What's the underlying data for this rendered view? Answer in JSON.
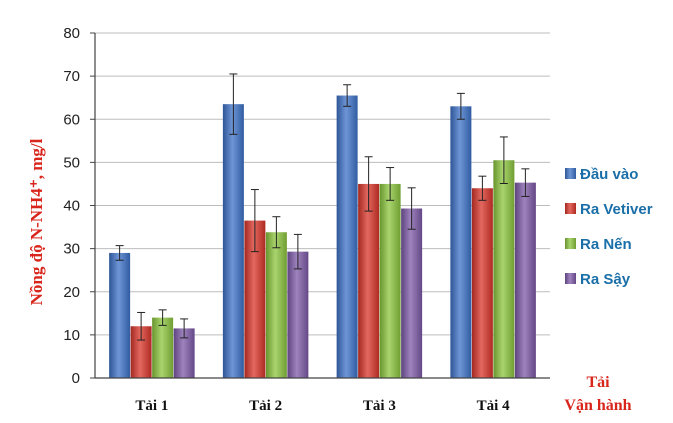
{
  "chart_data": {
    "type": "bar",
    "categories": [
      "Tải 1",
      "Tải 2",
      "Tải 3",
      "Tải 4"
    ],
    "series": [
      {
        "name": "Đầu vào",
        "values": [
          29,
          63.5,
          65.5,
          63
        ],
        "errors": [
          1.7,
          7,
          2.5,
          3
        ],
        "color": "#3d73c9"
      },
      {
        "name": "Ra Vetiver",
        "values": [
          12,
          36.5,
          45,
          44
        ],
        "errors": [
          3.2,
          7.2,
          6.3,
          2.8
        ],
        "color": "#d9352a"
      },
      {
        "name": "Ra Nến",
        "values": [
          14,
          33.8,
          45,
          50.5
        ],
        "errors": [
          1.8,
          3.6,
          3.8,
          5.4
        ],
        "color": "#8cc63e"
      },
      {
        "name": "Ra Sậy",
        "values": [
          11.5,
          29.3,
          39.3,
          45.3
        ],
        "errors": [
          2.2,
          4,
          4.8,
          3.2
        ],
        "color": "#7d5aa8"
      }
    ],
    "ylabel": "Nồng độ N-NH4⁺, mg/l",
    "xlabel_line1": "Tải",
    "xlabel_line2": "Vận hành",
    "ylim": [
      0,
      80
    ],
    "yticks": [
      0,
      10,
      20,
      30,
      40,
      50,
      60,
      70,
      80
    ],
    "grid": true,
    "legend_position": "right"
  }
}
